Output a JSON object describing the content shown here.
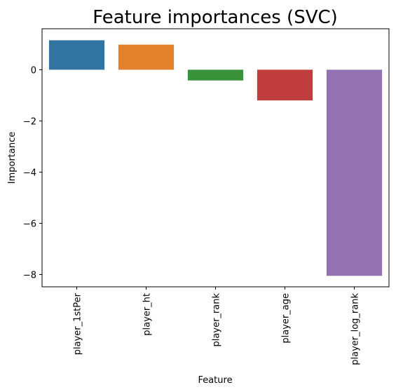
{
  "chart_data": {
    "type": "bar",
    "title": "Feature importances (SVC)",
    "xlabel": "Feature",
    "ylabel": "Importance",
    "categories": [
      "player_1stPer",
      "player_ht",
      "player_rank",
      "player_age",
      "player_log_rank"
    ],
    "values": [
      1.15,
      0.98,
      -0.42,
      -1.2,
      -8.05
    ],
    "colors": [
      "#3274a1",
      "#e1812c",
      "#3a923a",
      "#c03d3e",
      "#9372b2"
    ],
    "yticks": [
      0,
      -2,
      -4,
      -6,
      -8
    ],
    "ytick_labels": [
      "0",
      "−2",
      "−4",
      "−6",
      "−8"
    ],
    "ylim": [
      -8.48,
      1.6
    ],
    "grid": false
  }
}
